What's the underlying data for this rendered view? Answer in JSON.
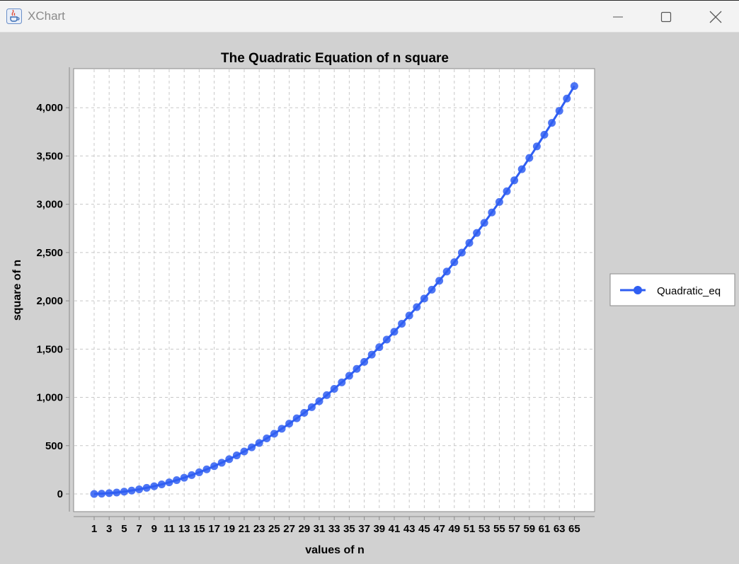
{
  "window": {
    "title": "XChart",
    "icon": "java-cup-icon",
    "controls": [
      "minimize-icon",
      "maximize-icon",
      "close-icon"
    ]
  },
  "chart_data": {
    "type": "line",
    "title": "The Quadratic Equation of n square",
    "xlabel": "values of n",
    "ylabel": "square of n",
    "x": [
      1,
      2,
      3,
      4,
      5,
      6,
      7,
      8,
      9,
      10,
      11,
      12,
      13,
      14,
      15,
      16,
      17,
      18,
      19,
      20,
      21,
      22,
      23,
      24,
      25,
      26,
      27,
      28,
      29,
      30,
      31,
      32,
      33,
      34,
      35,
      36,
      37,
      38,
      39,
      40,
      41,
      42,
      43,
      44,
      45,
      46,
      47,
      48,
      49,
      50,
      51,
      52,
      53,
      54,
      55,
      56,
      57,
      58,
      59,
      60,
      61,
      62,
      63,
      64,
      65
    ],
    "series": [
      {
        "name": "Quadratic_eq",
        "color": "#2f5ef2",
        "marker": "circle",
        "values": [
          0,
          3,
          8,
          15,
          24,
          35,
          48,
          63,
          80,
          99,
          120,
          143,
          168,
          195,
          224,
          255,
          288,
          323,
          360,
          399,
          440,
          483,
          528,
          575,
          624,
          675,
          728,
          783,
          840,
          899,
          960,
          1023,
          1088,
          1155,
          1224,
          1295,
          1368,
          1443,
          1520,
          1599,
          1680,
          1763,
          1848,
          1935,
          2024,
          2115,
          2208,
          2303,
          2400,
          2499,
          2600,
          2703,
          2808,
          2915,
          3024,
          3135,
          3248,
          3363,
          3480,
          3599,
          3720,
          3843,
          3968,
          4095,
          4224
        ]
      }
    ],
    "x_tick_labels": [
      "1",
      "3",
      "5",
      "7",
      "9",
      "11",
      "13",
      "15",
      "17",
      "19",
      "21",
      "23",
      "25",
      "27",
      "29",
      "31",
      "33",
      "35",
      "37",
      "39",
      "41",
      "43",
      "45",
      "47",
      "49",
      "51",
      "53",
      "55",
      "57",
      "59",
      "61",
      "63",
      "65"
    ],
    "y_tick_labels": [
      "0",
      "500",
      "1,000",
      "1,500",
      "2,000",
      "2,500",
      "3,000",
      "3,500",
      "4,000"
    ],
    "y_ticks": [
      0,
      500,
      1000,
      1500,
      2000,
      2500,
      3000,
      3500,
      4000
    ],
    "grid": true,
    "legend_position": "outside-right"
  }
}
